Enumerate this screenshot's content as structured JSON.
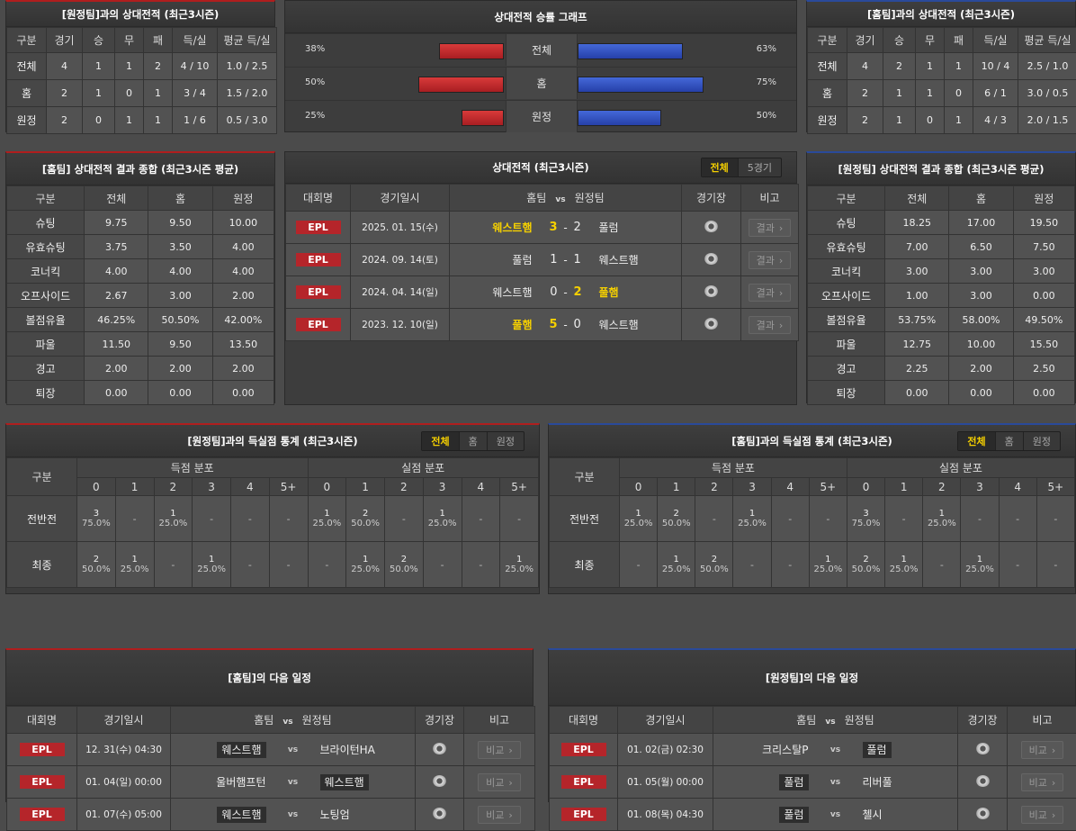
{
  "colors": {
    "accent_win": "#f5d000",
    "away_bar": "#c0282b",
    "home_bar": "#2f4fc0",
    "epl": "#b5252a"
  },
  "away_h2h": {
    "title": "[원정팀]과의 상대전적 (최근3시즌)",
    "headers": [
      "구분",
      "경기",
      "승",
      "무",
      "패",
      "득/실",
      "평균 득/실"
    ],
    "rows": [
      [
        "전체",
        "4",
        "1",
        "1",
        "2",
        "4 / 10",
        "1.0 / 2.5"
      ],
      [
        "홈",
        "2",
        "1",
        "0",
        "1",
        "3 / 4",
        "1.5 / 2.0"
      ],
      [
        "원정",
        "2",
        "0",
        "1",
        "1",
        "1 / 6",
        "0.5 / 3.0"
      ]
    ]
  },
  "home_h2h": {
    "title": "[홈팀]과의 상대전적 (최근3시즌)",
    "headers": [
      "구분",
      "경기",
      "승",
      "무",
      "패",
      "득/실",
      "평균 득/실"
    ],
    "rows": [
      [
        "전체",
        "4",
        "2",
        "1",
        "1",
        "10 / 4",
        "2.5 / 1.0"
      ],
      [
        "홈",
        "2",
        "1",
        "1",
        "0",
        "6 / 1",
        "3.0 / 0.5"
      ],
      [
        "원정",
        "2",
        "1",
        "0",
        "1",
        "4 / 3",
        "2.0 / 1.5"
      ]
    ]
  },
  "graph": {
    "title": "상대전적 승률 그래프",
    "rows": [
      {
        "label": "전체",
        "left": 38,
        "right": 63,
        "left_text": "38%",
        "right_text": "63%"
      },
      {
        "label": "홈",
        "left": 50,
        "right": 75,
        "left_text": "50%",
        "right_text": "75%"
      },
      {
        "label": "원정",
        "left": 25,
        "right": 50,
        "left_text": "25%",
        "right_text": "50%"
      }
    ]
  },
  "home_summary": {
    "title": "[홈팀] 상대전적 결과 종합 (최근3시즌 평균)",
    "headers": [
      "구분",
      "전체",
      "홈",
      "원정"
    ],
    "rows": [
      [
        "슈팅",
        "9.75",
        "9.50",
        "10.00"
      ],
      [
        "유효슈팅",
        "3.75",
        "3.50",
        "4.00"
      ],
      [
        "코너킥",
        "4.00",
        "4.00",
        "4.00"
      ],
      [
        "오프사이드",
        "2.67",
        "3.00",
        "2.00"
      ],
      [
        "볼점유율",
        "46.25%",
        "50.50%",
        "42.00%"
      ],
      [
        "파울",
        "11.50",
        "9.50",
        "13.50"
      ],
      [
        "경고",
        "2.00",
        "2.00",
        "2.00"
      ],
      [
        "퇴장",
        "0.00",
        "0.00",
        "0.00"
      ]
    ]
  },
  "away_summary": {
    "title": "[원정팀] 상대전적 결과 종합 (최근3시즌 평균)",
    "headers": [
      "구분",
      "전체",
      "홈",
      "원정"
    ],
    "rows": [
      [
        "슈팅",
        "18.25",
        "17.00",
        "19.50"
      ],
      [
        "유효슈팅",
        "7.00",
        "6.50",
        "7.50"
      ],
      [
        "코너킥",
        "3.00",
        "3.00",
        "3.00"
      ],
      [
        "오프사이드",
        "1.00",
        "3.00",
        "0.00"
      ],
      [
        "볼점유율",
        "53.75%",
        "58.00%",
        "49.50%"
      ],
      [
        "파울",
        "12.75",
        "10.00",
        "15.50"
      ],
      [
        "경고",
        "2.25",
        "2.00",
        "2.50"
      ],
      [
        "퇴장",
        "0.00",
        "0.00",
        "0.00"
      ]
    ]
  },
  "h2h_matches": {
    "title": "상대전적 (최근3시즌)",
    "tabs": [
      "전체",
      "5경기"
    ],
    "headers": {
      "league": "대회명",
      "date": "경기일시",
      "home": "홈팀",
      "vs": "vs",
      "away": "원정팀",
      "venue": "경기장",
      "note": "비고"
    },
    "rows": [
      {
        "league": "EPL",
        "date": "2025. 01. 15(수)",
        "home": "웨스트햄",
        "hs": "3",
        "as": "2",
        "away": "풀럼",
        "winner": "home",
        "btn": "결과"
      },
      {
        "league": "EPL",
        "date": "2024. 09. 14(토)",
        "home": "풀럼",
        "hs": "1",
        "as": "1",
        "away": "웨스트햄",
        "winner": "",
        "btn": "결과"
      },
      {
        "league": "EPL",
        "date": "2024. 04. 14(일)",
        "home": "웨스트햄",
        "hs": "0",
        "as": "2",
        "away": "풀햄",
        "winner": "away",
        "btn": "결과"
      },
      {
        "league": "EPL",
        "date": "2023. 12. 10(일)",
        "home": "풀햄",
        "hs": "5",
        "as": "0",
        "away": "웨스트햄",
        "winner": "home",
        "btn": "결과"
      }
    ]
  },
  "away_goals": {
    "title": "[원정팀]과의 득실점 통계 (최근3시즌)",
    "tabs": [
      "전체",
      "홈",
      "원정"
    ],
    "label_header": "구분",
    "group1": "득점 분포",
    "group2": "실점 분포",
    "cols": [
      "0",
      "1",
      "2",
      "3",
      "4",
      "5+",
      "0",
      "1",
      "2",
      "3",
      "4",
      "5+"
    ],
    "rows": [
      {
        "label": "전반전",
        "cells": [
          [
            "3",
            "75.0%"
          ],
          "-",
          [
            "1",
            "25.0%"
          ],
          "-",
          "-",
          "-",
          [
            "1",
            "25.0%"
          ],
          [
            "2",
            "50.0%"
          ],
          "-",
          [
            "1",
            "25.0%"
          ],
          "-",
          "-"
        ]
      },
      {
        "label": "최종",
        "cells": [
          [
            "2",
            "50.0%"
          ],
          [
            "1",
            "25.0%"
          ],
          "-",
          [
            "1",
            "25.0%"
          ],
          "-",
          "-",
          "-",
          [
            "1",
            "25.0%"
          ],
          [
            "2",
            "50.0%"
          ],
          "-",
          "-",
          [
            "1",
            "25.0%"
          ]
        ]
      }
    ]
  },
  "home_goals": {
    "title": "[홈팀]과의 득실점 통계 (최근3시즌)",
    "tabs": [
      "전체",
      "홈",
      "원정"
    ],
    "label_header": "구분",
    "group1": "득점 분포",
    "group2": "실점 분포",
    "cols": [
      "0",
      "1",
      "2",
      "3",
      "4",
      "5+",
      "0",
      "1",
      "2",
      "3",
      "4",
      "5+"
    ],
    "rows": [
      {
        "label": "전반전",
        "cells": [
          [
            "1",
            "25.0%"
          ],
          [
            "2",
            "50.0%"
          ],
          "-",
          [
            "1",
            "25.0%"
          ],
          "-",
          "-",
          [
            "3",
            "75.0%"
          ],
          "-",
          [
            "1",
            "25.0%"
          ],
          "-",
          "-",
          "-"
        ]
      },
      {
        "label": "최종",
        "cells": [
          "-",
          [
            "1",
            "25.0%"
          ],
          [
            "2",
            "50.0%"
          ],
          "-",
          "-",
          [
            "1",
            "25.0%"
          ],
          [
            "2",
            "50.0%"
          ],
          [
            "1",
            "25.0%"
          ],
          "-",
          [
            "1",
            "25.0%"
          ],
          "-",
          "-"
        ]
      }
    ]
  },
  "home_next": {
    "title": "[홈팀]의 다음 일정",
    "headers": {
      "league": "대회명",
      "date": "경기일시",
      "home": "홈팀",
      "vs": "vs",
      "away": "원정팀",
      "venue": "경기장",
      "note": "비고"
    },
    "rows": [
      {
        "league": "EPL",
        "date": "12. 31(수) 04:30",
        "home": "웨스트햄",
        "away": "브라이턴HA",
        "hl": "home",
        "btn": "비교"
      },
      {
        "league": "EPL",
        "date": "01. 04(일) 00:00",
        "home": "울버햄프턴",
        "away": "웨스트햄",
        "hl": "away",
        "btn": "비교"
      },
      {
        "league": "EPL",
        "date": "01. 07(수) 05:00",
        "home": "웨스트햄",
        "away": "노팅엄",
        "hl": "home",
        "btn": "비교"
      }
    ]
  },
  "away_next": {
    "title": "[원정팀]의 다음 일정",
    "headers": {
      "league": "대회명",
      "date": "경기일시",
      "home": "홈팀",
      "vs": "vs",
      "away": "원정팀",
      "venue": "경기장",
      "note": "비고"
    },
    "rows": [
      {
        "league": "EPL",
        "date": "01. 02(금) 02:30",
        "home": "크리스탈P",
        "away": "풀럼",
        "hl": "away",
        "btn": "비교"
      },
      {
        "league": "EPL",
        "date": "01. 05(월) 00:00",
        "home": "풀럼",
        "away": "리버풀",
        "hl": "home",
        "btn": "비교"
      },
      {
        "league": "EPL",
        "date": "01. 08(목) 04:30",
        "home": "풀럼",
        "away": "첼시",
        "hl": "home",
        "btn": "비교"
      }
    ]
  }
}
